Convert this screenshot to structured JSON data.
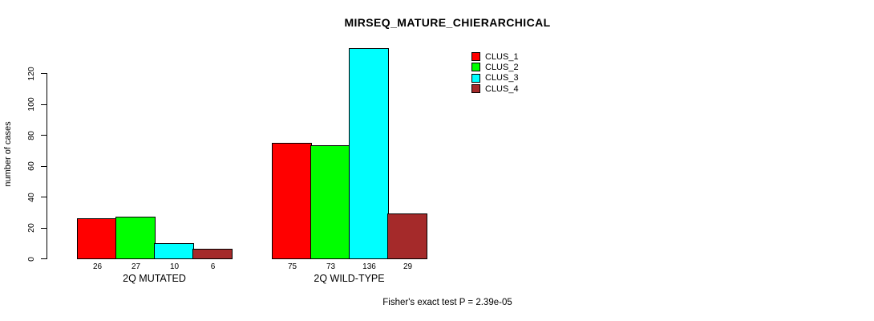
{
  "title": "MIRSEQ_MATURE_CHIERARCHICAL",
  "footer": "Fisher's exact test P = 2.39e-05",
  "chart_data": {
    "type": "bar",
    "title": "MIRSEQ_MATURE_CHIERARCHICAL",
    "xlabel": "",
    "ylabel": "number of cases",
    "ylim": [
      0,
      136
    ],
    "yticks": [
      0,
      20,
      40,
      60,
      80,
      100,
      120
    ],
    "grid": false,
    "legend_position": "top-right",
    "categories": [
      "2Q MUTATED",
      "2Q WILD-TYPE"
    ],
    "series": [
      {
        "name": "CLUS_1",
        "color": "#FF0000",
        "values": [
          26,
          75
        ]
      },
      {
        "name": "CLUS_2",
        "color": "#00FF00",
        "values": [
          27,
          73
        ]
      },
      {
        "name": "CLUS_3",
        "color": "#00FFFF",
        "values": [
          10,
          136
        ]
      },
      {
        "name": "CLUS_4",
        "color": "#A52A2A",
        "values": [
          6,
          29
        ]
      }
    ],
    "annotation": "Fisher's exact test P = 2.39e-05"
  }
}
